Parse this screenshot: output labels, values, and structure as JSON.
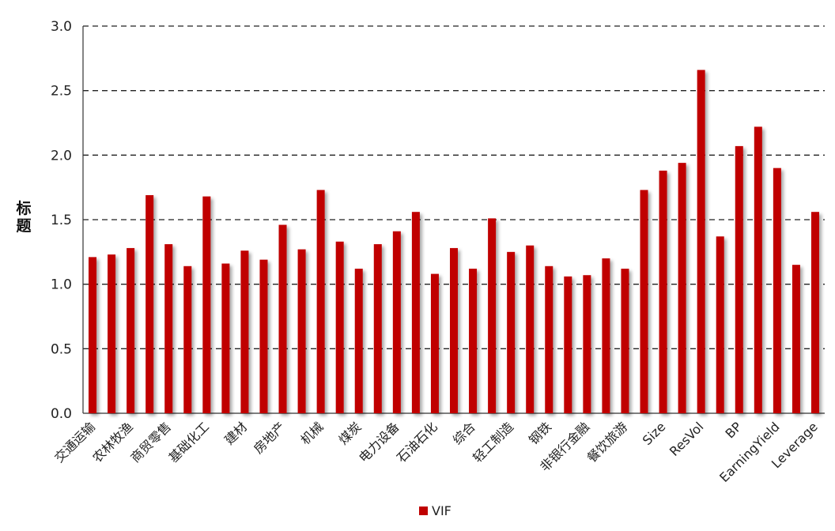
{
  "chart_data": {
    "type": "bar",
    "title": "",
    "xlabel": "",
    "ylabel": "标题",
    "ylim": [
      0,
      3
    ],
    "yticks": [
      "0.0",
      "0.5",
      "1.0",
      "1.5",
      "2.0",
      "2.5",
      "3.0"
    ],
    "grid": "horizontal dashed",
    "legend_position": "bottom",
    "categories": [
      "交通运输",
      "",
      "农林牧渔",
      "",
      "商贸零售",
      "",
      "基础化工",
      "",
      "建材",
      "",
      "房地产",
      "",
      "机械",
      "",
      "煤炭",
      "",
      "电力设备",
      "",
      "石油石化",
      "",
      "综合",
      "",
      "轻工制造",
      "",
      "钢铁",
      "",
      "非银行金融",
      "",
      "餐饮旅游",
      "",
      "Size",
      "",
      "ResVol",
      "",
      "BP",
      "",
      "EarningYield",
      "",
      "Leverage"
    ],
    "series": [
      {
        "name": "VIF",
        "color": "#C00000",
        "values": [
          1.21,
          1.23,
          1.28,
          1.69,
          1.31,
          1.14,
          1.68,
          1.16,
          1.26,
          1.19,
          1.46,
          1.27,
          1.73,
          1.33,
          1.12,
          1.31,
          1.41,
          1.56,
          1.08,
          1.28,
          1.12,
          1.51,
          1.25,
          1.3,
          1.14,
          1.06,
          1.07,
          1.2,
          1.12,
          1.73,
          1.88,
          1.94,
          2.66,
          1.37,
          2.07,
          2.22,
          1.9,
          1.15,
          1.56
        ]
      }
    ]
  }
}
